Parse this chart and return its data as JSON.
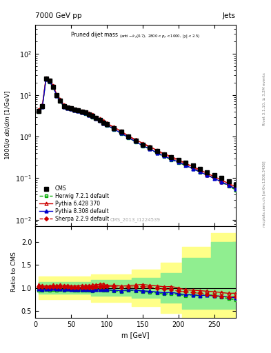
{
  "title_top": "7000 GeV pp",
  "title_right": "Jets",
  "plot_title": "Pruned dijet mass",
  "plot_subtitle": "(anti-k_{T}(0.7), 2800<p_{T}<1000, |y|<2.5)",
  "xlabel": "m [GeV]",
  "ylabel_main": "1000/σ dσ/dm [1/GeV]",
  "ylabel_ratio": "Ratio to CMS",
  "watermark": "CMS_2013_I1224539",
  "right_label": "mcplots.cern.ch [arXiv:1306.3436]",
  "right_label2": "Rivet 3.1.10, ≥ 3.2M events",
  "xlim": [
    0,
    280
  ],
  "ylim_main": [
    0.007,
    500
  ],
  "ylim_ratio": [
    0.35,
    2.35
  ],
  "m_bins": [
    5,
    10,
    15,
    20,
    25,
    30,
    35,
    40,
    45,
    50,
    55,
    60,
    65,
    70,
    75,
    80,
    85,
    90,
    95,
    100,
    110,
    120,
    130,
    140,
    150,
    160,
    170,
    180,
    190,
    200,
    210,
    220,
    230,
    240,
    250,
    260,
    270,
    280
  ],
  "cms_values": [
    4.2,
    5.5,
    25,
    22,
    16,
    10,
    7.5,
    5.5,
    5.0,
    4.8,
    4.5,
    4.3,
    4.0,
    3.8,
    3.5,
    3.2,
    2.8,
    2.5,
    2.2,
    2.0,
    1.6,
    1.3,
    1.0,
    0.8,
    0.65,
    0.55,
    0.45,
    0.38,
    0.32,
    0.28,
    0.24,
    0.2,
    0.17,
    0.14,
    0.12,
    0.1,
    0.085,
    0.07
  ],
  "herwig_values": [
    4.0,
    5.2,
    24,
    21,
    15.5,
    9.5,
    7.2,
    5.2,
    4.8,
    4.6,
    4.3,
    4.1,
    3.8,
    3.6,
    3.3,
    3.0,
    2.7,
    2.4,
    2.1,
    1.9,
    1.5,
    1.2,
    0.95,
    0.75,
    0.6,
    0.5,
    0.4,
    0.33,
    0.28,
    0.24,
    0.2,
    0.17,
    0.14,
    0.12,
    0.1,
    0.08,
    0.065,
    0.052
  ],
  "pythia6_values": [
    4.5,
    5.8,
    26,
    23,
    17,
    10.5,
    8.0,
    5.8,
    5.3,
    5.0,
    4.7,
    4.5,
    4.2,
    4.0,
    3.7,
    3.4,
    3.0,
    2.7,
    2.4,
    2.1,
    1.7,
    1.35,
    1.05,
    0.85,
    0.7,
    0.58,
    0.47,
    0.39,
    0.33,
    0.28,
    0.23,
    0.19,
    0.16,
    0.13,
    0.11,
    0.09,
    0.075,
    0.062
  ],
  "pythia8_values": [
    4.1,
    5.3,
    24.5,
    21.5,
    15.8,
    9.8,
    7.3,
    5.3,
    4.9,
    4.65,
    4.35,
    4.15,
    3.85,
    3.65,
    3.35,
    3.05,
    2.72,
    2.42,
    2.12,
    1.92,
    1.52,
    1.22,
    0.96,
    0.76,
    0.61,
    0.51,
    0.41,
    0.34,
    0.29,
    0.245,
    0.205,
    0.17,
    0.142,
    0.118,
    0.099,
    0.082,
    0.068,
    0.055
  ],
  "sherpa_values": [
    4.3,
    5.6,
    25.5,
    22.5,
    16.5,
    10.2,
    7.7,
    5.6,
    5.1,
    4.85,
    4.55,
    4.35,
    4.05,
    3.85,
    3.55,
    3.25,
    2.87,
    2.57,
    2.27,
    2.07,
    1.65,
    1.32,
    1.02,
    0.82,
    0.67,
    0.56,
    0.45,
    0.37,
    0.31,
    0.26,
    0.22,
    0.18,
    0.15,
    0.12,
    0.1,
    0.082,
    0.068,
    0.057
  ],
  "herwig_ratio": [
    0.95,
    0.95,
    0.96,
    0.955,
    0.97,
    0.95,
    0.96,
    0.945,
    0.96,
    0.96,
    0.956,
    0.953,
    0.95,
    0.947,
    0.943,
    0.938,
    0.964,
    0.96,
    0.955,
    0.95,
    0.938,
    0.923,
    0.95,
    0.938,
    0.923,
    0.909,
    0.889,
    0.868,
    0.875,
    0.857,
    0.833,
    0.85,
    0.824,
    0.857,
    0.833,
    0.8,
    0.765,
    0.743
  ],
  "pythia6_ratio": [
    1.07,
    1.05,
    1.04,
    1.045,
    1.063,
    1.05,
    1.067,
    1.055,
    1.06,
    1.042,
    1.044,
    1.047,
    1.05,
    1.053,
    1.057,
    1.063,
    1.071,
    1.08,
    1.09,
    1.05,
    1.063,
    1.038,
    1.05,
    1.063,
    1.077,
    1.055,
    1.044,
    1.026,
    1.031,
    1.0,
    0.958,
    0.95,
    0.941,
    0.929,
    0.917,
    0.9,
    0.882,
    0.886
  ],
  "pythia8_ratio": [
    0.976,
    0.964,
    0.98,
    0.977,
    0.988,
    0.98,
    0.973,
    0.964,
    0.98,
    0.969,
    0.967,
    0.965,
    0.963,
    0.961,
    0.957,
    0.953,
    0.971,
    0.968,
    0.964,
    0.96,
    0.95,
    0.938,
    0.96,
    0.95,
    0.938,
    0.927,
    0.911,
    0.895,
    0.906,
    0.875,
    0.854,
    0.85,
    0.835,
    0.843,
    0.825,
    0.82,
    0.8,
    0.786
  ],
  "sherpa_ratio": [
    1.024,
    1.018,
    1.02,
    1.023,
    1.031,
    1.02,
    1.027,
    1.018,
    1.02,
    1.01,
    1.011,
    1.012,
    1.013,
    1.013,
    1.014,
    1.016,
    1.025,
    1.028,
    1.032,
    1.035,
    1.031,
    1.015,
    1.02,
    1.025,
    1.031,
    1.018,
    1.0,
    0.974,
    0.969,
    0.929,
    0.917,
    0.9,
    0.882,
    0.857,
    0.833,
    0.82,
    0.8,
    0.814
  ],
  "herwig_band_inner": [
    0.87,
    1.13
  ],
  "herwig_band_outer": [
    0.72,
    1.28
  ],
  "cms_color": "#000000",
  "herwig_color": "#00aa00",
  "pythia6_color": "#cc0000",
  "pythia8_color": "#0000cc",
  "sherpa_color": "#cc0000",
  "band_inner_color": "#90EE90",
  "band_outer_color": "#FFFF99"
}
